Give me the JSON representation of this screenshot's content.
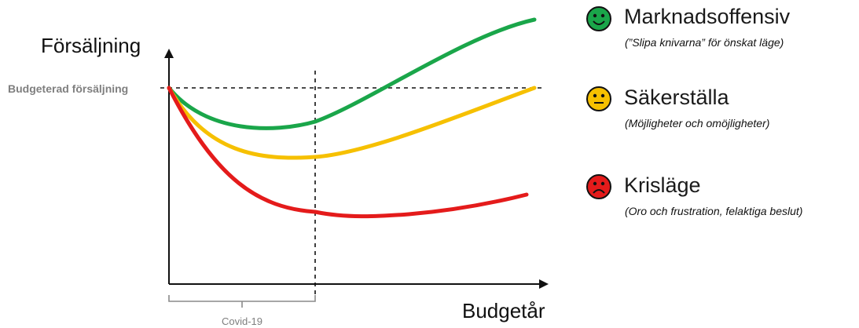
{
  "axis": {
    "y_label": "Försäljning",
    "x_label": "Budgetår",
    "reference_label": "Budgeterad försäljning",
    "bracket_label": "Covid-19"
  },
  "colors": {
    "green": "#1aa64a",
    "yellow": "#f6c000",
    "red": "#e41b1b",
    "axis": "#111111",
    "reference_label": "#7f7f7f"
  },
  "legend": [
    {
      "icon": "happy-face-icon",
      "color": "#1aa64a",
      "title": "Marknadsoffensiv",
      "subtitle": "(”Slipa knivarna” för önskat läge)"
    },
    {
      "icon": "neutral-face-icon",
      "color": "#f6c000",
      "title": "Säkerställa",
      "subtitle": "(Möjligheter och omöjligheter)"
    },
    {
      "icon": "sad-face-icon",
      "color": "#e41b1b",
      "title": "Krisläge",
      "subtitle": "(Oro och frustration, felaktiga beslut)"
    }
  ]
}
